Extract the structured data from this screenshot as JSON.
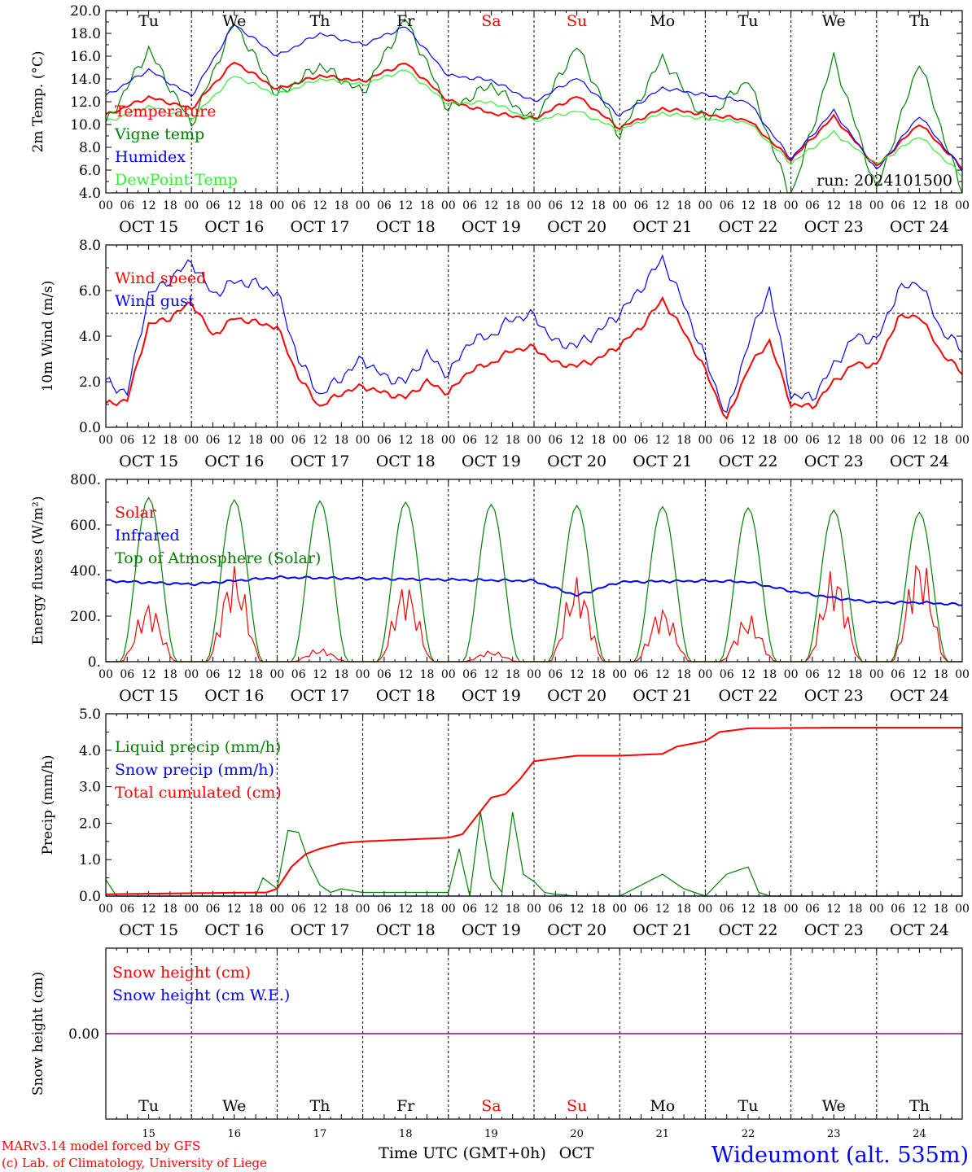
{
  "days": {
    "abbr": [
      "Tu",
      "We",
      "Th",
      "Fr",
      "Sa",
      "Su",
      "Mo",
      "Tu",
      "We",
      "Th"
    ],
    "dates": [
      "OCT 15",
      "OCT 16",
      "OCT 17",
      "OCT 18",
      "OCT 19",
      "OCT 20",
      "OCT 21",
      "OCT 22",
      "OCT 23",
      "OCT 24"
    ],
    "numbers": [
      "15",
      "16",
      "17",
      "18",
      "19",
      "20",
      "21",
      "22",
      "23",
      "24"
    ],
    "weekend_flags": [
      false,
      false,
      false,
      false,
      true,
      true,
      false,
      false,
      false,
      false
    ],
    "hour_ticks": [
      "00",
      "06",
      "12",
      "18"
    ],
    "end_tick": "00"
  },
  "colors": {
    "red": "#ff0000",
    "green": "#008000",
    "blue": "#0000ff",
    "lightgreen": "#33ee33",
    "purple": "#800080",
    "axis": "#000000"
  },
  "run_label": "run: 2024101500",
  "xlabel": "Time UTC (GMT+0h)",
  "xunit": "OCT",
  "footer": {
    "model": "MARv3.14 model forced by GFS",
    "credit": "(c) Lab. of Climatology, University of Liege",
    "station": "Wideumont (alt. 535m)"
  },
  "chart_data": [
    {
      "type": "line",
      "ylabel": "2m Temp. (°C)",
      "ylim": [
        4,
        20
      ],
      "yticks": [
        "4.0",
        "6.0",
        "8.0",
        "10.0",
        "12.0",
        "14.0",
        "16.0",
        "18.0",
        "20.0"
      ],
      "x_unit": "hours since OCT 15 00 UTC",
      "series": [
        {
          "name": "Temperature",
          "color": "#ff0000",
          "x": [
            0,
            12,
            24,
            36,
            48,
            60,
            72,
            84,
            96,
            108,
            120,
            132,
            144,
            156,
            168,
            180,
            192,
            204,
            216,
            228,
            240
          ],
          "values": [
            10.8,
            12.4,
            11.4,
            15.5,
            13.1,
            14.3,
            13.8,
            15.4,
            12.1,
            11.0,
            10.5,
            12.5,
            9.7,
            11.4,
            10.9,
            10.4,
            6.9,
            10.7,
            6.3,
            10.1,
            6.2
          ]
        },
        {
          "name": "Vigne temp",
          "color": "#008000",
          "x": [
            0,
            12,
            24,
            36,
            48,
            60,
            72,
            84,
            96,
            108,
            120,
            132,
            144,
            156,
            168,
            180,
            192,
            204,
            216,
            228,
            240
          ],
          "values": [
            10.0,
            16.6,
            10.0,
            19.0,
            12.5,
            15.2,
            12.8,
            19.3,
            11.3,
            13.5,
            10.3,
            16.9,
            9.0,
            15.9,
            10.3,
            14.0,
            3.5,
            15.9,
            4.2,
            15.6,
            4.0
          ]
        },
        {
          "name": "Humidex",
          "color": "#0000ff",
          "x": [
            0,
            12,
            24,
            36,
            48,
            60,
            72,
            84,
            96,
            108,
            120,
            132,
            144,
            156,
            168,
            180,
            192,
            204,
            216,
            228,
            240
          ],
          "values": [
            12.5,
            14.8,
            12.5,
            18.8,
            16.0,
            18.0,
            17.0,
            18.6,
            14.3,
            13.9,
            12.0,
            14.1,
            10.8,
            13.2,
            12.6,
            12.0,
            7.0,
            11.2,
            6.0,
            10.8,
            6.0
          ]
        },
        {
          "name": "DewPoint Temp",
          "color": "#33ee33",
          "x": [
            0,
            12,
            24,
            36,
            48,
            60,
            72,
            84,
            96,
            108,
            120,
            132,
            144,
            156,
            168,
            180,
            192,
            204,
            216,
            228,
            240
          ],
          "values": [
            10.2,
            11.6,
            10.5,
            14.3,
            12.6,
            14.0,
            13.5,
            14.8,
            11.8,
            12.0,
            10.3,
            11.2,
            9.5,
            11.0,
            10.5,
            10.2,
            6.6,
            9.3,
            6.5,
            9.0,
            5.5
          ]
        }
      ]
    },
    {
      "type": "line",
      "ylabel": "10m Wind (m/s)",
      "ylim": [
        0,
        8
      ],
      "yticks": [
        "0.0",
        "2.0",
        "4.0",
        "6.0",
        "8.0"
      ],
      "reference_line": 5.0,
      "x_unit": "hours since OCT 15 00 UTC",
      "series": [
        {
          "name": "Wind speed",
          "color": "#ff0000",
          "x": [
            0,
            6,
            12,
            18,
            24,
            30,
            36,
            42,
            48,
            54,
            60,
            66,
            72,
            78,
            84,
            90,
            96,
            102,
            108,
            114,
            120,
            126,
            132,
            138,
            144,
            150,
            156,
            162,
            168,
            174,
            180,
            186,
            192,
            198,
            204,
            210,
            216,
            222,
            228,
            234,
            240
          ],
          "values": [
            1.0,
            1.2,
            4.5,
            4.8,
            5.5,
            4.0,
            4.8,
            4.6,
            4.4,
            2.2,
            0.9,
            1.5,
            1.8,
            1.5,
            1.3,
            2.0,
            1.5,
            2.5,
            2.8,
            3.4,
            3.5,
            2.8,
            2.7,
            3.0,
            3.6,
            4.4,
            5.6,
            4.2,
            2.5,
            0.3,
            2.6,
            3.8,
            1.0,
            0.9,
            2.0,
            2.8,
            2.7,
            4.8,
            4.9,
            3.3,
            2.4
          ]
        },
        {
          "name": "Wind gust",
          "color": "#0000ff",
          "x": [
            0,
            6,
            12,
            18,
            24,
            30,
            36,
            42,
            48,
            54,
            60,
            66,
            72,
            78,
            84,
            90,
            96,
            102,
            108,
            114,
            120,
            126,
            132,
            138,
            144,
            150,
            156,
            162,
            168,
            174,
            180,
            186,
            192,
            198,
            204,
            210,
            216,
            222,
            228,
            234,
            240
          ],
          "values": [
            2.0,
            1.5,
            5.8,
            6.5,
            7.3,
            5.8,
            6.4,
            6.3,
            5.9,
            3.0,
            1.4,
            2.2,
            3.0,
            2.2,
            2.0,
            3.2,
            2.3,
            3.8,
            4.0,
            4.8,
            4.9,
            3.7,
            3.6,
            4.2,
            5.0,
            6.1,
            7.4,
            5.4,
            3.0,
            0.5,
            3.7,
            6.1,
            1.4,
            1.3,
            2.7,
            4.0,
            3.8,
            6.0,
            6.4,
            4.3,
            3.4
          ]
        }
      ]
    },
    {
      "type": "line",
      "ylabel": "Energy fluxes (W/m²)",
      "ylim": [
        0,
        800
      ],
      "yticks": [
        "0.",
        "200.",
        "400.",
        "600.",
        "800."
      ],
      "x_unit": "hours since OCT 15 00 UTC",
      "series": [
        {
          "name": "Solar",
          "color": "#ff0000",
          "peak_hours": [
            12,
            36,
            60,
            84,
            108,
            132,
            156,
            180,
            204,
            228
          ],
          "peak_values": [
            270,
            430,
            60,
            360,
            50,
            380,
            250,
            210,
            420,
            490
          ]
        },
        {
          "name": "Infrared",
          "color": "#0000ff",
          "x": [
            0,
            24,
            48,
            72,
            96,
            120,
            132,
            144,
            168,
            180,
            192,
            204,
            216,
            228,
            240
          ],
          "values": [
            355,
            340,
            370,
            365,
            360,
            355,
            290,
            350,
            355,
            350,
            310,
            280,
            260,
            260,
            250
          ]
        },
        {
          "name": "Top of Atmosphere (Solar)",
          "color": "#008000",
          "peak_hours": [
            12,
            36,
            60,
            84,
            108,
            132,
            156,
            180,
            204,
            228
          ],
          "peak_values": [
            720,
            710,
            705,
            700,
            690,
            685,
            680,
            675,
            665,
            655
          ]
        }
      ]
    },
    {
      "type": "line",
      "ylabel": "Precip (mm/h)",
      "ylim": [
        0,
        5
      ],
      "yticks": [
        "0.0",
        "1.0",
        "2.0",
        "3.0",
        "4.0",
        "5.0"
      ],
      "x_unit": "hours since OCT 15 00 UTC",
      "series": [
        {
          "name": "Liquid precip (mm/h)",
          "color": "#008000",
          "x": [
            0,
            3,
            24,
            42,
            44,
            48,
            51,
            54,
            57,
            60,
            63,
            66,
            72,
            84,
            96,
            99,
            102,
            105,
            108,
            111,
            114,
            117,
            120,
            123,
            126,
            132,
            144,
            156,
            162,
            168,
            174,
            180,
            183,
            186,
            192,
            216,
            240
          ],
          "values": [
            0.45,
            0.0,
            0.0,
            0.0,
            0.5,
            0.2,
            1.8,
            1.75,
            0.9,
            0.3,
            0.1,
            0.2,
            0.1,
            0.1,
            0.1,
            1.3,
            0.0,
            2.3,
            0.5,
            0.1,
            2.3,
            0.6,
            0.4,
            0.1,
            0.05,
            0.0,
            0.0,
            0.6,
            0.2,
            0.0,
            0.6,
            0.8,
            0.1,
            0.0,
            0.0,
            0.0,
            0.0
          ]
        },
        {
          "name": "Snow precip (mm/h)",
          "color": "#0000ff",
          "x": [
            0,
            240
          ],
          "values": [
            0.0,
            0.0
          ]
        },
        {
          "name": "Total cumulated (cm)",
          "color": "#ff0000",
          "x": [
            0,
            24,
            45,
            48,
            52,
            56,
            60,
            66,
            72,
            84,
            96,
            100,
            104,
            108,
            112,
            116,
            120,
            132,
            144,
            156,
            160,
            168,
            172,
            180,
            204,
            240
          ],
          "values": [
            0.05,
            0.08,
            0.1,
            0.2,
            0.8,
            1.15,
            1.3,
            1.45,
            1.5,
            1.55,
            1.6,
            1.7,
            2.2,
            2.7,
            2.8,
            3.2,
            3.7,
            3.85,
            3.85,
            3.9,
            4.1,
            4.25,
            4.5,
            4.6,
            4.62,
            4.62
          ]
        }
      ]
    },
    {
      "type": "line",
      "ylabel": "Snow height (cm)",
      "yticks": [
        "0.00"
      ],
      "x_unit": "hours since OCT 15 00 UTC",
      "series": [
        {
          "name": "Snow height (cm)",
          "color": "#ff0000",
          "x": [
            0,
            240
          ],
          "values": [
            0.0,
            0.0
          ]
        },
        {
          "name": "Snow height (cm W.E.)",
          "color": "#0000ff",
          "x": [
            0,
            240
          ],
          "values": [
            0.0,
            0.0
          ]
        }
      ]
    }
  ]
}
